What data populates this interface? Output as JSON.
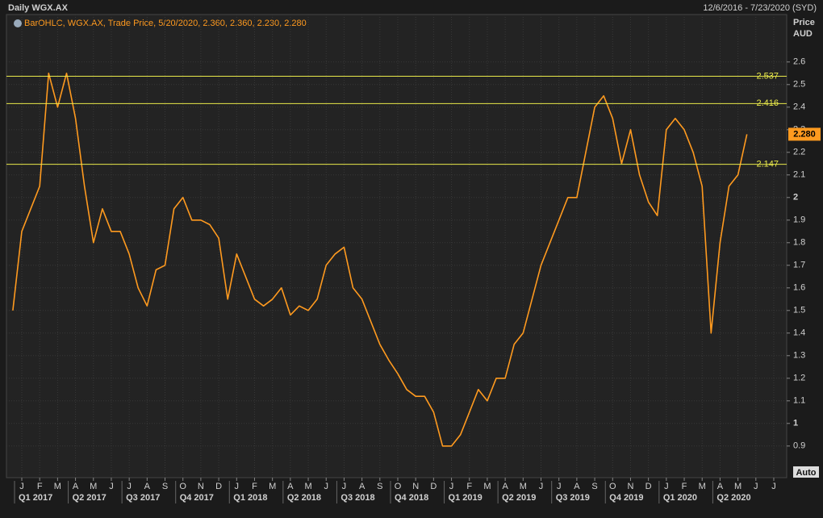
{
  "chart_data": {
    "type": "line",
    "title": "Daily WGX.AX",
    "date_range": "12/6/2016 - 7/23/2020 (SYD)",
    "legend_text": "BarOHLC, WGX.AX, Trade Price, 5/20/2020, 2.360, 2.360, 2.230, 2.280",
    "y_axis_label": [
      "Price",
      "AUD"
    ],
    "button": "Auto",
    "categories": [
      null,
      "J",
      null,
      "F",
      null,
      "M",
      null,
      "A",
      null,
      "M",
      null,
      "J",
      null,
      "J",
      null,
      "A",
      null,
      "S",
      null,
      "O",
      null,
      "N",
      null,
      "D",
      null,
      "J",
      null,
      "F",
      null,
      "M",
      null,
      "A",
      null,
      "M",
      null,
      "J",
      null,
      "J",
      null,
      "A",
      null,
      "S",
      null,
      "O",
      null,
      "N",
      null,
      "D",
      null,
      "J",
      null,
      "F",
      null,
      "M",
      null,
      "A",
      null,
      "M",
      null,
      "J",
      null,
      "J",
      null,
      "A",
      null,
      "S",
      null,
      "O",
      null,
      "N",
      null,
      "D",
      null,
      "J",
      null,
      "F",
      null,
      "M",
      null,
      "A",
      null,
      "M",
      null,
      "J",
      null,
      "J"
    ],
    "quarters": [
      "Q1 2017",
      "Q2 2017",
      "Q3 2017",
      "Q4 2017",
      "Q1 2018",
      "Q2 2018",
      "Q3 2018",
      "Q4 2018",
      "Q1 2019",
      "Q2 2019",
      "Q3 2019",
      "Q4 2019",
      "Q1 2020",
      "Q2 2020"
    ],
    "series": [
      {
        "name": "WGX.AX",
        "color": "#ff9a1f",
        "values": [
          1.5,
          1.85,
          1.95,
          2.05,
          2.55,
          2.4,
          2.55,
          2.35,
          2.05,
          1.8,
          1.95,
          1.85,
          1.85,
          1.75,
          1.6,
          1.52,
          1.68,
          1.7,
          1.95,
          2.0,
          1.9,
          1.9,
          1.88,
          1.82,
          1.55,
          1.75,
          1.65,
          1.55,
          1.52,
          1.55,
          1.6,
          1.48,
          1.52,
          1.5,
          1.55,
          1.7,
          1.75,
          1.78,
          1.6,
          1.55,
          1.45,
          1.35,
          1.28,
          1.22,
          1.15,
          1.12,
          1.12,
          1.05,
          0.9,
          0.9,
          0.95,
          1.05,
          1.15,
          1.1,
          1.2,
          1.2,
          1.35,
          1.4,
          1.55,
          1.7,
          1.8,
          1.9,
          2.0,
          2.0,
          2.2,
          2.4,
          2.45,
          2.35,
          2.15,
          2.3,
          2.1,
          1.98,
          1.92,
          2.3,
          2.35,
          2.3,
          2.2,
          2.05,
          1.4,
          1.8,
          2.05,
          2.1,
          2.28,
          null,
          null,
          null
        ]
      }
    ],
    "levels": [
      2.537,
      2.416,
      2.147
    ],
    "level_color": "#e8e84a",
    "last_price": {
      "value": 2.28,
      "label": "2.280"
    },
    "ylim": [
      0.76,
      2.81
    ],
    "yticks": [
      0.9,
      1,
      1.1,
      1.2,
      1.3,
      1.4,
      1.5,
      1.6,
      1.7,
      1.8,
      1.9,
      2,
      2.1,
      2.2,
      2.3,
      2.4,
      2.5,
      2.6
    ],
    "grid": true
  }
}
